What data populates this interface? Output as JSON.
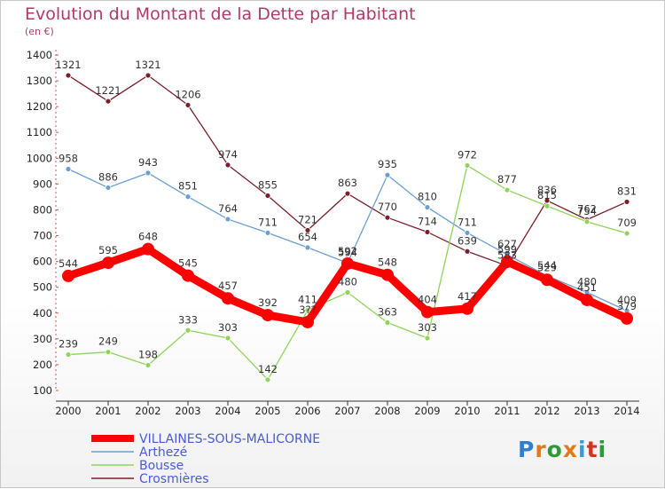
{
  "title": "Evolution du Montant de la Dette par Habitant",
  "unit": "(en €)",
  "logo": {
    "text": "Proxiti",
    "colors": [
      "#2f7fd0",
      "#e07a1a",
      "#2f9a3a",
      "#e07a1a",
      "#3a9bd0",
      "#d0361f",
      "#2f9a3a"
    ]
  },
  "chart_data": {
    "type": "line",
    "x": [
      2000,
      2001,
      2002,
      2003,
      2004,
      2005,
      2006,
      2007,
      2008,
      2009,
      2010,
      2011,
      2012,
      2013,
      2014
    ],
    "ylim": [
      100,
      1400
    ],
    "yticks": [
      100,
      200,
      300,
      400,
      500,
      600,
      700,
      800,
      900,
      1000,
      1100,
      1200,
      1300,
      1400
    ],
    "grid": false,
    "legend_position": "bottom-left",
    "series": [
      {
        "name": "VILLAINES-SOUS-MALICORNE",
        "color": "#ff0000",
        "width": 9,
        "marker": 7,
        "values": [
          544,
          595,
          648,
          545,
          457,
          392,
          365,
          592,
          548,
          404,
          417,
          599,
          529,
          451,
          379
        ],
        "labels": [
          "544",
          "595",
          "648",
          "545",
          "457",
          "392",
          "3??",
          "592",
          "548",
          "404",
          "417",
          "599",
          "529",
          "451",
          "379"
        ]
      },
      {
        "name": "Arthezé",
        "color": "#6a9fd0",
        "width": 1.3,
        "marker": 3,
        "values": [
          958,
          886,
          943,
          851,
          764,
          711,
          654,
          594,
          935,
          810,
          711,
          627,
          544,
          480,
          409
        ],
        "labels": [
          "958",
          "886",
          "943",
          "851",
          "764",
          "711",
          "654",
          "594",
          "935",
          "810",
          "711",
          "627",
          "544",
          "480",
          "409"
        ]
      },
      {
        "name": "Bousse",
        "color": "#8fd45a",
        "width": 1.3,
        "marker": 3,
        "values": [
          239,
          249,
          198,
          333,
          303,
          142,
          411,
          480,
          363,
          303,
          972,
          877,
          815,
          754,
          709
        ],
        "labels": [
          "239",
          "249",
          "198",
          "333",
          "303",
          "142",
          "411",
          "480",
          "363",
          "303",
          "972",
          "877",
          "815",
          "754",
          "709"
        ]
      },
      {
        "name": "Crosmières",
        "color": "#7a1f2a",
        "width": 1.3,
        "marker": 3,
        "values": [
          1321,
          1221,
          1321,
          1206,
          974,
          855,
          721,
          863,
          770,
          714,
          639,
          583,
          836,
          762,
          831
        ],
        "labels": [
          "1321",
          "1221",
          "1321",
          "1206",
          "974",
          "855",
          "721",
          "863",
          "770",
          "714",
          "639",
          "583",
          "836",
          "762",
          "831"
        ]
      }
    ]
  }
}
